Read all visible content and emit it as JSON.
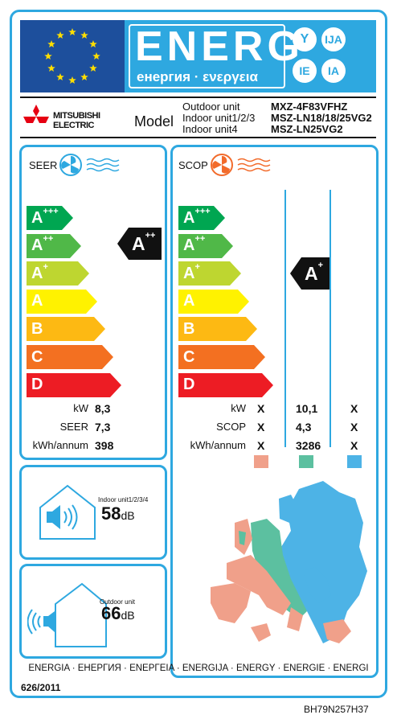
{
  "header": {
    "energ_word": "ENERG",
    "sub_word": "енергия · ενεργεια",
    "circles": [
      "Y",
      "IJA",
      "IE",
      "IA"
    ]
  },
  "brand": {
    "name_line1": "MITSUBISHI",
    "name_line2": "ELECTRIC",
    "model_label": "Model",
    "rows": [
      {
        "label": "Outdoor unit",
        "value": "MXZ-4F83VFHZ"
      },
      {
        "label": "Indoor unit1/2/3",
        "value": "MSZ-LN18/18/25VG2"
      },
      {
        "label": "Indoor unit4",
        "value": "MSZ-LN25VG2"
      }
    ]
  },
  "seer": {
    "title": "SEER",
    "classes": [
      "A+++",
      "A++",
      "A+",
      "A",
      "B",
      "C",
      "D"
    ],
    "rating": "A++",
    "rows": [
      {
        "label": "kW",
        "value": "8,3"
      },
      {
        "label": "SEER",
        "value": "7,3"
      },
      {
        "label": "kWh/annum",
        "value": "398"
      }
    ]
  },
  "scop": {
    "title": "SCOP",
    "classes": [
      "A+++",
      "A++",
      "A+",
      "A",
      "B",
      "C",
      "D"
    ],
    "rating": "A+",
    "rows": [
      {
        "label": "kW",
        "values": [
          "X",
          "10,1",
          "X"
        ]
      },
      {
        "label": "SCOP",
        "values": [
          "X",
          "4,3",
          "X"
        ]
      },
      {
        "label": "kWh/annum",
        "values": [
          "X",
          "3286",
          "X"
        ]
      }
    ],
    "zone_colors": [
      "#f0a08a",
      "#5cc0a0",
      "#4db3e6"
    ]
  },
  "noise": {
    "indoor_label": "Indoor unit1/2/3/4",
    "indoor_value": "58",
    "indoor_unit": "dB",
    "outdoor_label": "Outdoor unit",
    "outdoor_value": "66",
    "outdoor_unit": "dB"
  },
  "footer": {
    "languages": "ENERGIA · ЕНЕРГИЯ · ΕΝΕΡΓΕΙΑ · ENERGIJA · ENERGY · ENERGIE · ENERGI",
    "regulation": "626/2011",
    "code": "BH79N257H37"
  },
  "colors": {
    "accent": "#2ea8e0",
    "eu_blue": "#1d4f9c",
    "eu_star": "#ffde00",
    "class_colors": [
      "#00a651",
      "#50b848",
      "#bed630",
      "#fff200",
      "#fdb913",
      "#f37021",
      "#ed1c24"
    ]
  }
}
